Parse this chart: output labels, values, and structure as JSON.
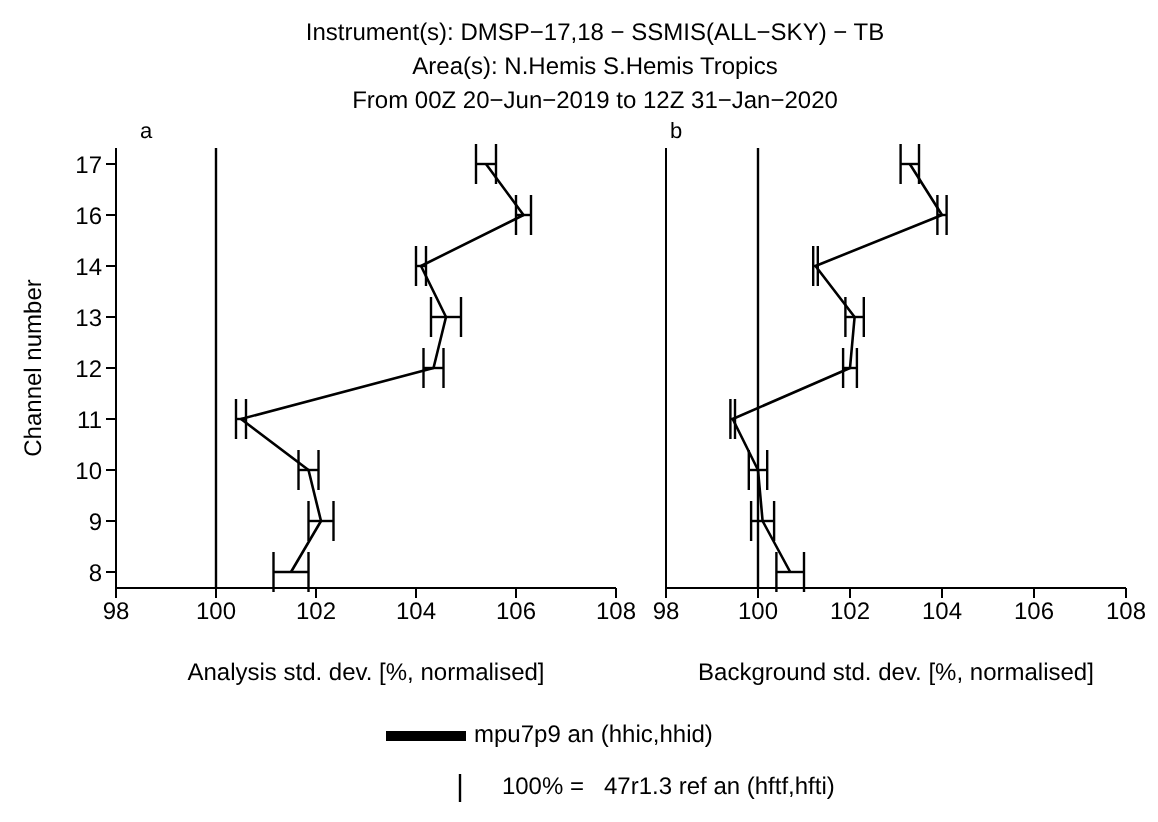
{
  "chart_data": [
    {
      "type": "line",
      "title": "Instrument(s): DMSP−17,18 − SSMIS(ALL−SKY) − TB",
      "subtitle": "Area(s): N.Hemis S.Hemis Tropics",
      "annotations": [
        "From 00Z 20−Jun−2019 to 12Z 31−Jan−2020",
        "a"
      ],
      "orientation": "horizontal",
      "ylabel": "Channel number",
      "xlabel": "Analysis std. dev. [%, normalised]",
      "categories": [
        "17",
        "16",
        "14",
        "13",
        "12",
        "11",
        "10",
        "9",
        "8"
      ],
      "xlim": [
        98,
        108
      ],
      "xticks": [
        98,
        100,
        102,
        104,
        106,
        108
      ],
      "series": [
        {
          "name": "mpu7p9 an (hhic,hhid)",
          "color": "#000000",
          "values": [
            105.4,
            106.15,
            104.1,
            104.6,
            104.35,
            100.5,
            101.85,
            102.1,
            101.5
          ],
          "errors": [
            0.2,
            0.15,
            0.1,
            0.3,
            0.2,
            0.1,
            0.2,
            0.25,
            0.35
          ]
        }
      ],
      "ref_lines": [
        {
          "axis": "x",
          "value": 100,
          "label": "100% =  47r1.3 ref an (hftf,hfti)",
          "color": "#000000"
        }
      ],
      "legend": "bottom",
      "marker": "none"
    },
    {
      "type": "line",
      "annotations": [
        "b"
      ],
      "orientation": "horizontal",
      "xlabel": "Background std. dev. [%, normalised]",
      "categories": [
        "17",
        "16",
        "14",
        "13",
        "12",
        "11",
        "10",
        "9",
        "8"
      ],
      "xlim": [
        98,
        108
      ],
      "xticks": [
        98,
        100,
        102,
        104,
        106,
        108
      ],
      "tick_labels": "x",
      "series": [
        {
          "color": "#000000",
          "values": [
            103.3,
            104.0,
            101.25,
            102.1,
            102.0,
            99.45,
            100.0,
            100.1,
            100.7
          ],
          "errors": [
            0.2,
            0.1,
            0.05,
            0.2,
            0.15,
            0.05,
            0.2,
            0.25,
            0.3
          ]
        }
      ],
      "ref_lines": [
        {
          "axis": "x",
          "value": 100,
          "color": "#000000"
        }
      ],
      "marker": "none"
    }
  ]
}
